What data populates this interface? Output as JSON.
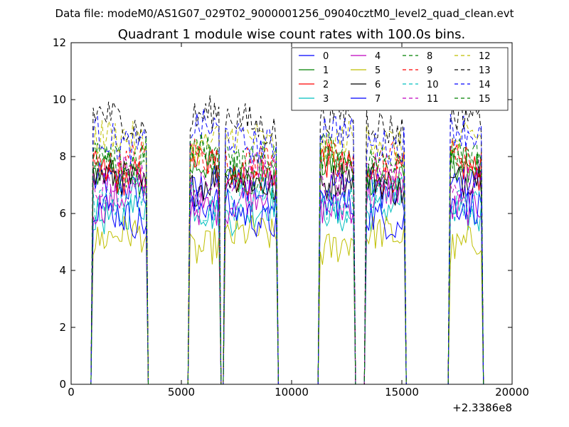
{
  "header": {
    "data_file": "Data file: modeM0/AS1G07_029T02_9000001256_09040cztM0_level2_quad_clean.evt"
  },
  "chart_data": {
    "type": "line",
    "title": "Quadrant 1 module wise count rates with 100.0s bins.",
    "xlabel": "",
    "ylabel": "",
    "xlim": [
      0,
      20000
    ],
    "ylim": [
      0,
      12
    ],
    "x_offset_label": "+2.3386e8",
    "xticks": [
      0,
      5000,
      10000,
      15000,
      20000
    ],
    "xtick_labels": [
      "0",
      "5000",
      "10000",
      "15000",
      "20000"
    ],
    "yticks": [
      0,
      2,
      4,
      6,
      8,
      10,
      12
    ],
    "ytick_labels": [
      "0",
      "2",
      "4",
      "6",
      "8",
      "10",
      "12"
    ],
    "legend_position": "top-right",
    "bin_width": 100,
    "segments": [
      [
        1000,
        3400
      ],
      [
        5400,
        6700
      ],
      [
        7000,
        9300
      ],
      [
        11300,
        12800
      ],
      [
        13400,
        15100
      ],
      [
        17200,
        18600
      ]
    ],
    "gap_value": 0,
    "series": [
      {
        "name": "0",
        "color": "#0000ff",
        "dash": "solid",
        "level": 6.8
      },
      {
        "name": "1",
        "color": "#008000",
        "dash": "solid",
        "level": 7.4
      },
      {
        "name": "2",
        "color": "#ff0000",
        "dash": "solid",
        "level": 7.6
      },
      {
        "name": "3",
        "color": "#00bfbf",
        "dash": "solid",
        "level": 6.2
      },
      {
        "name": "4",
        "color": "#bf00bf",
        "dash": "solid",
        "level": 6.5
      },
      {
        "name": "5",
        "color": "#bfbf00",
        "dash": "solid",
        "level": 5.0
      },
      {
        "name": "6",
        "color": "#000000",
        "dash": "solid",
        "level": 7.0
      },
      {
        "name": "7",
        "color": "#0000ff",
        "dash": "solid",
        "level": 6.0
      },
      {
        "name": "8",
        "color": "#008000",
        "dash": "dashed",
        "level": 7.8
      },
      {
        "name": "9",
        "color": "#ff0000",
        "dash": "dashed",
        "level": 8.0
      },
      {
        "name": "10",
        "color": "#00bfbf",
        "dash": "dashed",
        "level": 6.6
      },
      {
        "name": "11",
        "color": "#bf00bf",
        "dash": "dashed",
        "level": 7.2
      },
      {
        "name": "12",
        "color": "#bfbf00",
        "dash": "dashed",
        "level": 8.4
      },
      {
        "name": "13",
        "color": "#000000",
        "dash": "dashed",
        "level": 9.2
      },
      {
        "name": "14",
        "color": "#0000ff",
        "dash": "dashed",
        "level": 8.7
      },
      {
        "name": "15",
        "color": "#008000",
        "dash": "dashed",
        "level": 8.1
      }
    ]
  }
}
